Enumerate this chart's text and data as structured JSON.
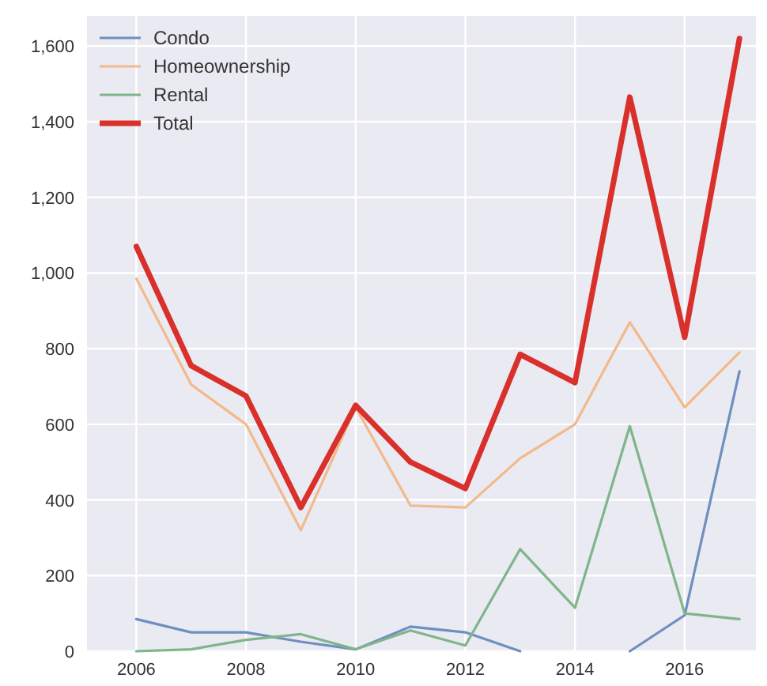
{
  "chart_data": {
    "type": "line",
    "x": [
      2006,
      2007,
      2008,
      2009,
      2010,
      2011,
      2012,
      2013,
      2014,
      2015,
      2016,
      2017
    ],
    "series": [
      {
        "name": "Condo",
        "color": "#6f8fbf",
        "values": [
          85,
          50,
          50,
          25,
          5,
          65,
          50,
          0,
          null,
          0,
          95,
          740
        ]
      },
      {
        "name": "Homeownership",
        "color": "#f2b98c",
        "values": [
          985,
          705,
          600,
          320,
          645,
          385,
          380,
          510,
          600,
          870,
          645,
          790
        ]
      },
      {
        "name": "Rental",
        "color": "#7fb58a",
        "values": [
          0,
          5,
          30,
          45,
          5,
          55,
          15,
          270,
          115,
          595,
          100,
          85
        ]
      },
      {
        "name": "Total",
        "color": "#d9302b",
        "values": [
          1070,
          755,
          675,
          380,
          650,
          500,
          430,
          785,
          710,
          1465,
          830,
          1620
        ]
      }
    ],
    "xlim": [
      2005.1,
      2017.3
    ],
    "ylim": [
      0,
      1680
    ],
    "xticks": [
      2006,
      2008,
      2010,
      2012,
      2014,
      2016
    ],
    "yticks": [
      0,
      200,
      400,
      {
        "value": 600,
        "label": "600"
      },
      {
        "value": 800,
        "label": "800"
      },
      {
        "value": 1000,
        "label": "1,000"
      },
      {
        "value": 1200,
        "label": "1,200"
      },
      {
        "value": 1400,
        "label": "1,400"
      },
      {
        "value": 1600,
        "label": "1,600"
      }
    ],
    "grid": true,
    "legend": "top left",
    "line_style": "solid",
    "marker": "none"
  }
}
